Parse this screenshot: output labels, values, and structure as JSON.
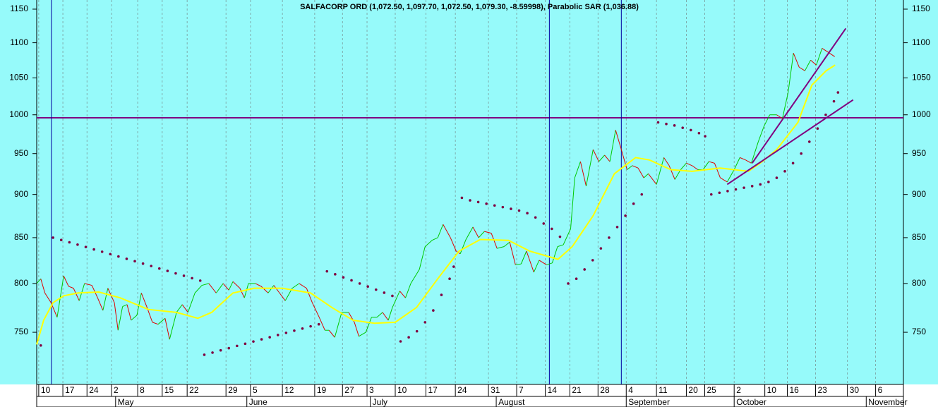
{
  "chart_data": {
    "type": "line",
    "title": "SALFACORP ORD (1,072.50, 1,097.70, 1,072.50, 1,079.30, -8.59998), Parabolic SAR (1,036.88)",
    "log_y": true,
    "grid": true,
    "background": "#96fafa",
    "xlim": [
      0,
      212
    ],
    "ylim": [
      700,
      1164
    ],
    "yticks": [
      750,
      800,
      850,
      900,
      950,
      1000,
      1050,
      1100,
      1150
    ],
    "xticks": [
      {
        "value": 0.5,
        "label": "10"
      },
      {
        "value": 6.4,
        "label": "17"
      },
      {
        "value": 12.3,
        "label": "24"
      },
      {
        "value": 18.3,
        "label": "2"
      },
      {
        "value": 24.7,
        "label": "8"
      },
      {
        "value": 30.7,
        "label": "15"
      },
      {
        "value": 36.8,
        "label": "22"
      },
      {
        "value": 46.3,
        "label": "29"
      },
      {
        "value": 52.3,
        "label": "5"
      },
      {
        "value": 60.1,
        "label": "12"
      },
      {
        "value": 68,
        "label": "19"
      },
      {
        "value": 74.8,
        "label": "27"
      },
      {
        "value": 80.8,
        "label": "3"
      },
      {
        "value": 87.7,
        "label": "10"
      },
      {
        "value": 95.2,
        "label": "17"
      },
      {
        "value": 102.4,
        "label": "24"
      },
      {
        "value": 110.5,
        "label": "31"
      },
      {
        "value": 117.4,
        "label": "7"
      },
      {
        "value": 124.4,
        "label": "14"
      },
      {
        "value": 130.4,
        "label": "21"
      },
      {
        "value": 137.3,
        "label": "28"
      },
      {
        "value": 144.2,
        "label": "4"
      },
      {
        "value": 151.6,
        "label": "11"
      },
      {
        "value": 158.9,
        "label": "20"
      },
      {
        "value": 163.4,
        "label": "25"
      },
      {
        "value": 170.6,
        "label": "2"
      },
      {
        "value": 178.1,
        "label": "10"
      },
      {
        "value": 183.6,
        "label": "16"
      },
      {
        "value": 190.5,
        "label": "23"
      },
      {
        "value": 198.3,
        "label": "30"
      },
      {
        "value": 205.2,
        "label": "6"
      }
    ],
    "month_ticks": [
      {
        "value": 19.3,
        "label": "May"
      },
      {
        "value": 51.4,
        "label": "June"
      },
      {
        "value": 81.6,
        "label": "July"
      },
      {
        "value": 112.4,
        "label": "August"
      },
      {
        "value": 144.2,
        "label": "September"
      },
      {
        "value": 170.6,
        "label": "October"
      },
      {
        "value": 202.9,
        "label": "November"
      }
    ],
    "hlines": [
      996
    ],
    "hline_color": "#800080",
    "vlines": [
      3.6,
      125.4,
      143
    ],
    "vline_color": "#0000a0",
    "series": [
      {
        "style": "updown",
        "color": "#e00000",
        "up_color": "#00c800",
        "x": [
          0,
          1,
          2,
          3.5,
          5,
          6.6,
          7.8,
          9,
          10.4,
          11.7,
          13.5,
          14.9,
          16.2,
          17.4,
          19,
          19.9,
          21,
          22.1,
          23.1,
          24.5,
          25.6,
          26.9,
          28.3,
          29.7,
          31.4,
          32.5,
          34.2,
          35.6,
          37,
          38.7,
          40.4,
          42.1,
          43.9,
          45.6,
          47,
          48,
          49.7,
          50.8,
          51.8,
          53.5,
          54.9,
          56.6,
          58,
          59.4,
          60.8,
          62.5,
          64.2,
          66,
          67.4,
          69.1,
          70.5,
          71.5,
          72.9,
          74.6,
          76.3,
          77.7,
          78.8,
          80.5,
          81.9,
          83.2,
          84.6,
          86,
          87,
          88.8,
          90.2,
          91.5,
          93.6,
          95,
          96.7,
          98.1,
          99.4,
          101.2,
          102.6,
          103.6,
          105,
          106.7,
          108.1,
          109.5,
          111.2,
          112.6,
          114.3,
          115.7,
          117.1,
          118.5,
          119.8,
          121.6,
          122.9,
          124.7,
          126.1,
          127.4,
          128.8,
          130.6,
          131.6,
          133,
          134.4,
          136.1,
          137.5,
          138.9,
          140.2,
          141.6,
          143,
          144.4,
          145.7,
          147.1,
          148.5,
          149.6,
          151.6,
          153.4,
          154.7,
          156.1,
          157.5,
          158.9,
          160.3,
          161.7,
          163,
          164.4,
          165.8,
          167.2,
          168.9,
          170.6,
          172,
          173.4,
          174.8,
          176.5,
          177.9,
          179.3,
          181,
          182.4,
          183.8,
          185.1,
          186.5,
          187.9,
          189.3,
          190.7,
          192.1,
          193.4,
          195.2
        ],
        "values": [
          800,
          805,
          790,
          780,
          765,
          808,
          797,
          795,
          782,
          800,
          798,
          785,
          772,
          795,
          780,
          752,
          776,
          778,
          762,
          767,
          790,
          776,
          760,
          758,
          764,
          743,
          770,
          778,
          770,
          790,
          798,
          800,
          790,
          800,
          793,
          802,
          795,
          785,
          800,
          800,
          797,
          790,
          798,
          790,
          782,
          795,
          800,
          795,
          780,
          765,
          752,
          752,
          745,
          770,
          770,
          760,
          746,
          750,
          765,
          765,
          770,
          762,
          775,
          792,
          785,
          800,
          815,
          840,
          847,
          850,
          865,
          850,
          835,
          832,
          848,
          862,
          850,
          857,
          855,
          838,
          840,
          845,
          820,
          821,
          835,
          812,
          825,
          820,
          822,
          840,
          842,
          860,
          920,
          940,
          910,
          955,
          940,
          948,
          940,
          980,
          955,
          930,
          935,
          932,
          920,
          925,
          912,
          945,
          935,
          918,
          930,
          938,
          935,
          930,
          930,
          940,
          938,
          920,
          915,
          930,
          945,
          942,
          938,
          965,
          985,
          1000,
          1000,
          995,
          1030,
          1085,
          1065,
          1060,
          1075,
          1068,
          1092,
          1087,
          1080
        ]
      },
      {
        "style": "line",
        "color": "#ffff00",
        "x": [
          0,
          1.7,
          4,
          6.6,
          10,
          15.2,
          20.4,
          27.3,
          34.2,
          39.4,
          42.8,
          48,
          53.2,
          60.1,
          67,
          72.2,
          77.4,
          82.6,
          87.7,
          92.9,
          98.1,
          103.3,
          108.5,
          115.4,
          120.6,
          127.5,
          131,
          136.1,
          141.3,
          146.5,
          149.9,
          155.1,
          160.3,
          167.2,
          174.1,
          177.5,
          181,
          186.2,
          189.6,
          193.1,
          195.3
        ],
        "values": [
          738,
          762,
          780,
          787,
          790,
          791,
          785,
          773,
          770,
          764,
          770,
          790,
          795,
          795,
          790,
          775,
          762,
          759,
          760,
          775,
          805,
          835,
          848,
          847,
          835,
          826,
          840,
          875,
          925,
          945,
          942,
          930,
          928,
          932,
          928,
          940,
          955,
          990,
          1040,
          1060,
          1068
        ]
      },
      {
        "style": "dots",
        "color": "#800040",
        "x": [
          1,
          4,
          6,
          8,
          10,
          12,
          14,
          16,
          18,
          20,
          22,
          24,
          26,
          28,
          30,
          32,
          34,
          36,
          38,
          40,
          41,
          43,
          45,
          47,
          49,
          51,
          53,
          55,
          57,
          59,
          61,
          63,
          65,
          67,
          69,
          71,
          73,
          75,
          77,
          79,
          81,
          83,
          85,
          87,
          89,
          91,
          93,
          95,
          97,
          99,
          101,
          102,
          104,
          106,
          108,
          110,
          112,
          114,
          116,
          118,
          120,
          122,
          124,
          126,
          128,
          130,
          132,
          134,
          136,
          138,
          140,
          142,
          144,
          146,
          148,
          152,
          154,
          156,
          158,
          160,
          162,
          163.5,
          165,
          167,
          169,
          171,
          173,
          175,
          177,
          179,
          181,
          183,
          185,
          187,
          189,
          191,
          193,
          195,
          196
        ],
        "values": [
          737,
          850,
          847.4,
          844.8,
          842.2,
          839.6,
          836.9,
          834.3,
          831.7,
          829.1,
          826.5,
          823.9,
          821.3,
          818.7,
          816,
          813.4,
          810.8,
          808.2,
          805.6,
          803,
          728,
          730.1,
          732.3,
          734.4,
          736.6,
          738.7,
          740.9,
          743,
          745.1,
          747.3,
          749.4,
          751.6,
          753.7,
          755.9,
          758,
          813,
          809.8,
          806.5,
          803.3,
          800,
          796.8,
          793.5,
          790.3,
          787,
          741,
          745,
          751,
          760,
          772,
          788,
          805,
          818,
          896,
          893,
          891,
          889,
          887,
          885,
          883,
          881,
          878,
          873,
          866,
          860,
          851,
          800,
          805,
          815,
          825,
          838,
          850,
          862,
          875,
          889,
          900,
          990,
          988,
          986,
          983,
          980,
          976,
          972,
          900,
          902,
          904,
          906,
          908,
          910,
          912,
          915,
          920,
          928,
          938,
          950,
          965,
          982,
          1000,
          1018,
          1030
        ]
      },
      {
        "style": "line",
        "color": "#800080",
        "x": [
          175,
          197.9
        ],
        "values": [
          938,
          1121
        ]
      },
      {
        "style": "line",
        "color": "#800080",
        "x": [
          168.9,
          199.7
        ],
        "values": [
          912,
          1020
        ]
      }
    ]
  }
}
